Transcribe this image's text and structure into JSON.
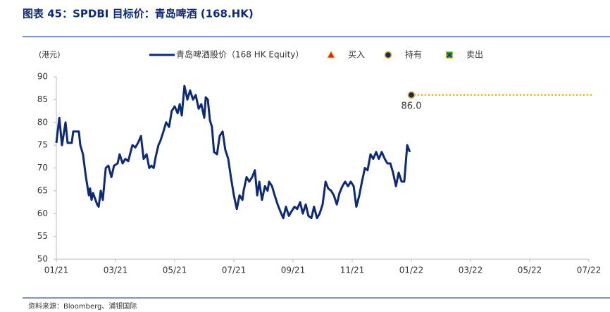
{
  "chart_data": {
    "type": "line",
    "title": "图表 45：SPDBI 目标价：青岛啤酒 (168.HK)",
    "y_label": "(港元)",
    "source": "资料来源：Bloomberg、浦银国际",
    "xlim": [
      0,
      18
    ],
    "xticks": [
      {
        "value": 0,
        "label": "01/21"
      },
      {
        "value": 2,
        "label": "03/21"
      },
      {
        "value": 4,
        "label": "05/21"
      },
      {
        "value": 6,
        "label": "07/21"
      },
      {
        "value": 8,
        "label": "09/21"
      },
      {
        "value": 10,
        "label": "11/21"
      },
      {
        "value": 12,
        "label": "01/22"
      },
      {
        "value": 14,
        "label": "03/22"
      },
      {
        "value": 16,
        "label": "05/22"
      },
      {
        "value": 18,
        "label": "07/22"
      }
    ],
    "ylim": [
      50,
      90
    ],
    "yticks": [
      50,
      55,
      60,
      65,
      70,
      75,
      80,
      85,
      90
    ],
    "grid": false,
    "series": [
      {
        "name": "青岛啤酒股价（168 HK Equity）",
        "color": "#0d2a7a",
        "kind": "line",
        "x": [
          0,
          0.1,
          0.19,
          0.31,
          0.38,
          0.52,
          0.57,
          0.76,
          0.81,
          0.9,
          1.0,
          1.1,
          1.14,
          1.19,
          1.24,
          1.38,
          1.43,
          1.5,
          1.57,
          1.67,
          1.76,
          1.86,
          1.95,
          2.07,
          2.14,
          2.24,
          2.33,
          2.43,
          2.57,
          2.67,
          2.76,
          2.86,
          2.95,
          3.05,
          3.14,
          3.21,
          3.29,
          3.36,
          3.45,
          3.52,
          3.62,
          3.71,
          3.81,
          3.9,
          4.0,
          4.1,
          4.17,
          4.24,
          4.33,
          4.43,
          4.52,
          4.62,
          4.71,
          4.81,
          4.9,
          5.0,
          5.05,
          5.12,
          5.19,
          5.26,
          5.33,
          5.43,
          5.52,
          5.62,
          5.71,
          5.81,
          5.9,
          6.0,
          6.1,
          6.19,
          6.29,
          6.33,
          6.43,
          6.52,
          6.62,
          6.71,
          6.79,
          6.86,
          6.95,
          7.05,
          7.14,
          7.19,
          7.29,
          7.38,
          7.48,
          7.57,
          7.67,
          7.76,
          7.86,
          7.95,
          8.05,
          8.14,
          8.24,
          8.33,
          8.43,
          8.52,
          8.62,
          8.71,
          8.81,
          8.9,
          9.0,
          9.1,
          9.19,
          9.29,
          9.38,
          9.48,
          9.57,
          9.67,
          9.76,
          9.86,
          9.95,
          10.05,
          10.14,
          10.24,
          10.33,
          10.43,
          10.52,
          10.62,
          10.71,
          10.81,
          10.9,
          11.0,
          11.1,
          11.19,
          11.29,
          11.38,
          11.48,
          11.57,
          11.67,
          11.76,
          11.86,
          11.95
        ],
        "values": [
          75.5,
          81,
          75,
          80,
          75.5,
          75.5,
          78,
          78,
          75,
          73,
          68,
          64,
          65.5,
          63,
          64.5,
          62,
          61.5,
          65,
          63,
          70,
          70.5,
          68,
          70.5,
          71,
          73,
          71,
          72,
          71.5,
          75,
          74.5,
          75.5,
          77,
          72,
          73,
          70,
          70.5,
          70,
          72.5,
          75,
          76,
          78,
          80,
          79,
          82.5,
          83.5,
          82,
          84,
          81.5,
          88,
          85,
          87,
          85,
          86,
          83,
          84,
          81,
          85.5,
          85,
          80.5,
          79,
          73.5,
          73,
          77,
          78,
          74,
          72,
          68,
          64,
          61,
          64,
          63,
          65,
          68,
          67,
          68,
          69.5,
          64,
          67,
          63,
          66,
          65,
          67,
          66,
          64,
          62,
          60.5,
          59,
          61.5,
          59.5,
          60.5,
          61.5,
          61,
          62.5,
          60,
          62,
          59.5,
          59,
          61.5,
          59,
          60,
          62,
          67,
          65.5,
          65,
          64,
          62,
          64.5,
          66,
          67,
          66,
          67,
          66,
          61.5,
          64,
          67,
          70,
          69.5,
          73,
          72,
          73.5,
          72,
          73.5,
          72,
          71,
          71,
          69,
          66,
          69,
          67,
          67,
          75,
          73.5
        ]
      },
      {
        "name": "买入",
        "color": "#e02020",
        "kind": "buy",
        "x": [],
        "values": []
      },
      {
        "name": "持有",
        "color": "#0d2a7a",
        "kind": "hold",
        "x": [
          12
        ],
        "values": [
          86
        ],
        "value_labels": [
          "86.0"
        ]
      },
      {
        "name": "卖出",
        "color": "#3aa63a",
        "kind": "sell",
        "x": [],
        "values": []
      }
    ]
  }
}
